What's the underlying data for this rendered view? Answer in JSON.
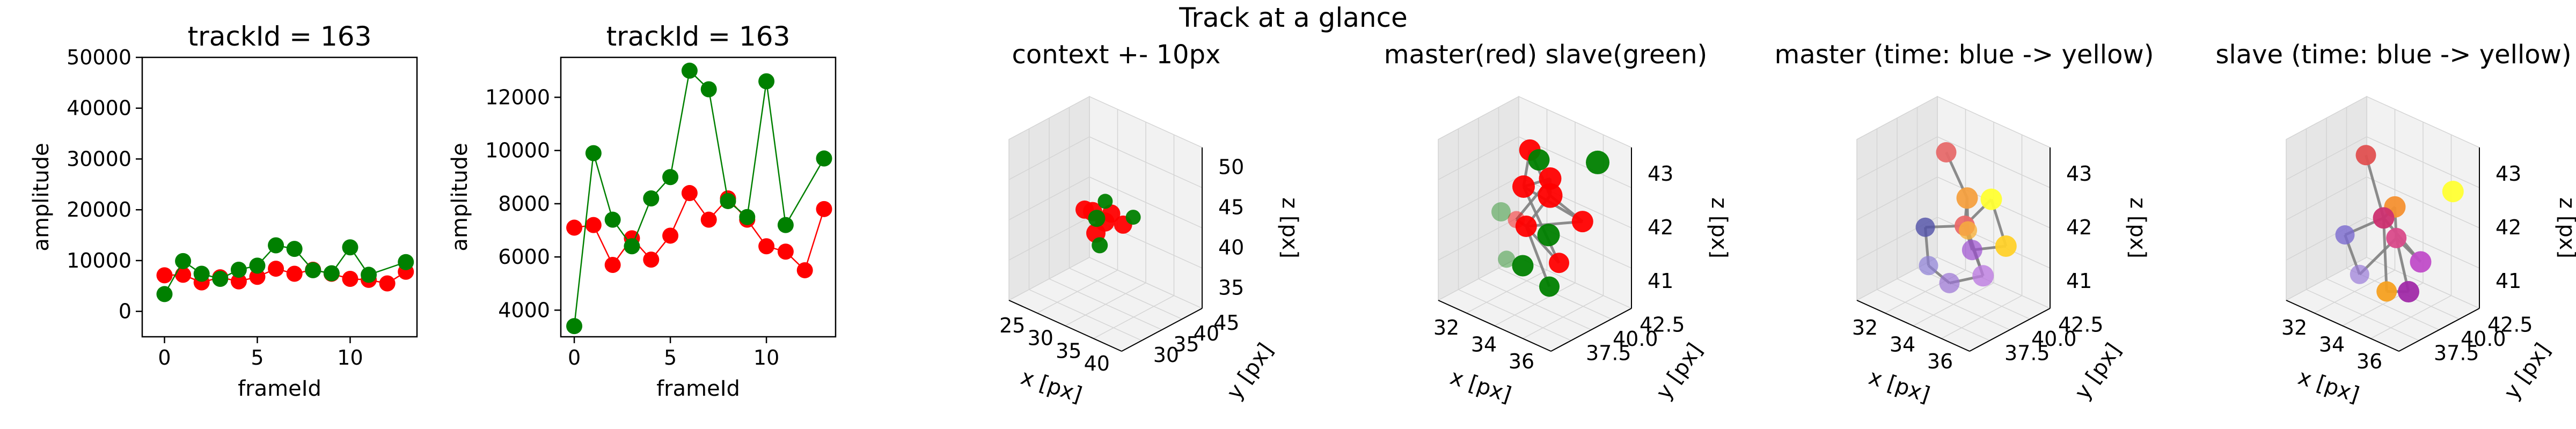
{
  "figure": {
    "suptitle": "Track at a glance"
  },
  "colors": {
    "red": "#ff0000",
    "green": "#008000",
    "gray": "#808080",
    "pane": "#f2f2f2",
    "pane_dark": "#e6e6e6",
    "grid": "#d4d4d4"
  },
  "chart_data": [
    {
      "type": "line",
      "title": "trackId = 163",
      "xlabel": "frameId",
      "ylabel": "amplitude",
      "xlim": [
        -1.2,
        13.6
      ],
      "ylim": [
        -5000,
        50000
      ],
      "xticks": [
        0,
        5,
        10
      ],
      "yticks": [
        0,
        10000,
        20000,
        30000,
        40000,
        50000
      ],
      "x": [
        0,
        1,
        2,
        3,
        4,
        5,
        6,
        7,
        8,
        9,
        10,
        11,
        12,
        13
      ],
      "series": [
        {
          "color": "red",
          "values": [
            7100,
            7200,
            5700,
            6700,
            5900,
            6800,
            8400,
            7400,
            8200,
            7400,
            6400,
            6200,
            5500,
            7800
          ]
        },
        {
          "color": "green",
          "values": [
            3400,
            9900,
            7400,
            6400,
            8200,
            9000,
            13000,
            12300,
            8100,
            7500,
            12600,
            7200,
            null,
            9700
          ]
        }
      ]
    },
    {
      "type": "line",
      "title": "trackId = 163",
      "xlabel": "frameId",
      "ylabel": "amplitude",
      "xlim": [
        -0.7,
        13.6
      ],
      "ylim": [
        3000,
        13500
      ],
      "xticks": [
        0,
        5,
        10
      ],
      "yticks": [
        4000,
        6000,
        8000,
        10000,
        12000
      ],
      "x": [
        0,
        1,
        2,
        3,
        4,
        5,
        6,
        7,
        8,
        9,
        10,
        11,
        12,
        13
      ],
      "series": [
        {
          "color": "red",
          "values": [
            7100,
            7200,
            5700,
            6700,
            5900,
            6800,
            8400,
            7400,
            8200,
            7400,
            6400,
            6200,
            5500,
            7800
          ]
        },
        {
          "color": "green",
          "values": [
            3400,
            9900,
            7400,
            6400,
            8200,
            9000,
            13000,
            12300,
            8100,
            7500,
            12600,
            7200,
            null,
            9700
          ]
        }
      ]
    },
    {
      "type": "scatter",
      "title": "context +- 10px",
      "xlabel": "x [px]",
      "ylabel": "y [px]",
      "zlabel": "z [px]",
      "xticks": [
        "25",
        "30",
        "35",
        "40"
      ],
      "yticks": [
        "30",
        "35",
        "40",
        "45"
      ],
      "zticks": [
        "35",
        "40",
        "45",
        "50"
      ],
      "points": [
        {
          "x": 0.3,
          "y": 0.52,
          "z": 0.52,
          "color": "red",
          "r": 17
        },
        {
          "x": 0.4,
          "y": 0.48,
          "z": 0.55,
          "color": "red",
          "r": 18
        },
        {
          "x": 0.48,
          "y": 0.52,
          "z": 0.5,
          "color": "red",
          "r": 18
        },
        {
          "x": 0.55,
          "y": 0.5,
          "z": 0.58,
          "color": "red",
          "r": 17
        },
        {
          "x": 0.62,
          "y": 0.55,
          "z": 0.52,
          "color": "red",
          "r": 17
        },
        {
          "x": 0.45,
          "y": 0.45,
          "z": 0.44,
          "color": "red",
          "r": 18
        },
        {
          "x": 0.35,
          "y": 0.6,
          "z": 0.46,
          "color": "green",
          "r": 16
        },
        {
          "x": 0.52,
          "y": 0.4,
          "z": 0.4,
          "color": "green",
          "r": 15
        },
        {
          "x": 0.66,
          "y": 0.62,
          "z": 0.56,
          "color": "green",
          "r": 14
        },
        {
          "x": 0.44,
          "y": 0.58,
          "z": 0.6,
          "color": "green",
          "r": 14
        }
      ]
    },
    {
      "type": "scatter",
      "title": "master(red) slave(green)",
      "xlabel": "x [px]",
      "ylabel": "y [px]",
      "zlabel": "z [px]",
      "xticks": [
        "32",
        "34",
        "36"
      ],
      "yticks": [
        "37.5",
        "40.0",
        "42.5"
      ],
      "zticks": [
        "41",
        "42",
        "43"
      ],
      "points": [
        {
          "x": 0.42,
          "y": 0.55,
          "z": 0.92,
          "color": "red",
          "r": 20
        },
        {
          "x": 0.4,
          "y": 0.5,
          "z": 0.7,
          "color": "red",
          "r": 21
        },
        {
          "x": 0.55,
          "y": 0.62,
          "z": 0.66,
          "color": "red",
          "r": 23
        },
        {
          "x": 0.6,
          "y": 0.55,
          "z": 0.8,
          "color": "red",
          "r": 21
        },
        {
          "x": 0.78,
          "y": 0.7,
          "z": 0.55,
          "color": "red",
          "r": 20
        },
        {
          "x": 0.48,
          "y": 0.42,
          "z": 0.5,
          "color": "red",
          "r": 20
        },
        {
          "x": 0.3,
          "y": 0.55,
          "z": 0.45,
          "color": "red",
          "r": 16,
          "alpha": 0.45
        },
        {
          "x": 0.75,
          "y": 0.45,
          "z": 0.35,
          "color": "red",
          "r": 19
        },
        {
          "x": 0.2,
          "y": 0.5,
          "z": 0.48,
          "color": "green",
          "r": 18,
          "alpha": 0.4
        },
        {
          "x": 0.45,
          "y": 0.62,
          "z": 0.85,
          "color": "green",
          "r": 20
        },
        {
          "x": 0.55,
          "y": 0.6,
          "z": 0.42,
          "color": "green",
          "r": 21
        },
        {
          "x": 0.9,
          "y": 0.72,
          "z": 0.95,
          "color": "green",
          "r": 22
        },
        {
          "x": 0.5,
          "y": 0.35,
          "z": 0.28,
          "color": "green",
          "r": 20
        },
        {
          "x": 0.7,
          "y": 0.4,
          "z": 0.2,
          "color": "green",
          "r": 19
        },
        {
          "x": 0.32,
          "y": 0.4,
          "z": 0.25,
          "color": "green",
          "r": 16,
          "alpha": 0.4
        }
      ],
      "path": [
        [
          0,
          1
        ],
        [
          1,
          3
        ],
        [
          3,
          2
        ],
        [
          2,
          5
        ],
        [
          5,
          4
        ],
        [
          4,
          1
        ],
        [
          1,
          7
        ],
        [
          7,
          5
        ],
        [
          2,
          0
        ],
        [
          3,
          6
        ],
        [
          6,
          5
        ],
        [
          5,
          13
        ],
        [
          2,
          4
        ]
      ]
    },
    {
      "type": "scatter",
      "title": "master (time: blue -> yellow)",
      "xlabel": "x [px]",
      "ylabel": "y [px]",
      "zlabel": "z [px]",
      "xticks": [
        "32",
        "34",
        "36"
      ],
      "yticks": [
        "37.5",
        "40.0",
        "42.5"
      ],
      "zticks": [
        "41",
        "42",
        "43"
      ],
      "points": [
        {
          "x": 0.4,
          "y": 0.55,
          "z": 0.9,
          "color": "#e66a6a",
          "r": 19
        },
        {
          "x": 0.55,
          "y": 0.6,
          "z": 0.65,
          "color": "#f4a040",
          "r": 20
        },
        {
          "x": 0.75,
          "y": 0.62,
          "z": 0.7,
          "color": "#ffff33",
          "r": 20
        },
        {
          "x": 0.88,
          "y": 0.62,
          "z": 0.45,
          "color": "#ffd12a",
          "r": 20
        },
        {
          "x": 0.6,
          "y": 0.5,
          "z": 0.52,
          "color": "#ea6a6a",
          "r": 19
        },
        {
          "x": 0.68,
          "y": 0.48,
          "z": 0.4,
          "color": "#9d4ed0",
          "r": 19,
          "alpha": 0.7
        },
        {
          "x": 0.82,
          "y": 0.42,
          "z": 0.3,
          "color": "#bc7be0",
          "r": 20,
          "alpha": 0.8
        },
        {
          "x": 0.25,
          "y": 0.5,
          "z": 0.4,
          "color": "#5050a8",
          "r": 18,
          "alpha": 0.8
        },
        {
          "x": 0.35,
          "y": 0.4,
          "z": 0.22,
          "color": "#8b7ed6",
          "r": 18,
          "alpha": 0.7
        },
        {
          "x": 0.55,
          "y": 0.38,
          "z": 0.18,
          "color": "#9a72d4",
          "r": 19,
          "alpha": 0.7
        },
        {
          "x": 0.7,
          "y": 0.4,
          "z": 0.55,
          "color": "#f7b23b",
          "r": 17,
          "alpha": 0.8
        }
      ],
      "path": [
        [
          0,
          1
        ],
        [
          1,
          4
        ],
        [
          4,
          2
        ],
        [
          2,
          3
        ],
        [
          3,
          5
        ],
        [
          5,
          4
        ],
        [
          4,
          6
        ],
        [
          6,
          9
        ],
        [
          9,
          8
        ],
        [
          8,
          7
        ],
        [
          7,
          4
        ],
        [
          1,
          10
        ],
        [
          10,
          6
        ]
      ]
    },
    {
      "type": "scatter",
      "title": "slave (time: blue -> yellow)",
      "xlabel": "x [px]",
      "ylabel": "y [px]",
      "zlabel": "z [px]",
      "xticks": [
        "32",
        "34",
        "36"
      ],
      "yticks": [
        "37.5",
        "40.0",
        "42.5"
      ],
      "zticks": [
        "41",
        "42",
        "43"
      ],
      "points": [
        {
          "x": 0.35,
          "y": 0.5,
          "z": 0.88,
          "color": "#e05050",
          "r": 19
        },
        {
          "x": 0.98,
          "y": 0.7,
          "z": 0.8,
          "color": "#ffff33",
          "r": 20
        },
        {
          "x": 0.55,
          "y": 0.58,
          "z": 0.6,
          "color": "#f49030",
          "r": 20
        },
        {
          "x": 0.45,
          "y": 0.58,
          "z": 0.5,
          "color": "#cc3070",
          "r": 20
        },
        {
          "x": 0.62,
          "y": 0.5,
          "z": 0.45,
          "color": "#d94a8a",
          "r": 19
        },
        {
          "x": 0.85,
          "y": 0.48,
          "z": 0.38,
          "color": "#c04cc8",
          "r": 20
        },
        {
          "x": 0.2,
          "y": 0.45,
          "z": 0.35,
          "color": "#7a6ad0",
          "r": 18,
          "alpha": 0.8
        },
        {
          "x": 0.38,
          "y": 0.38,
          "z": 0.18,
          "color": "#9a7ad8",
          "r": 18,
          "alpha": 0.7
        },
        {
          "x": 0.62,
          "y": 0.38,
          "z": 0.15,
          "color": "#f5a020",
          "r": 19
        },
        {
          "x": 0.8,
          "y": 0.4,
          "z": 0.2,
          "color": "#a02aa8",
          "r": 20
        }
      ],
      "path": [
        [
          0,
          3
        ],
        [
          3,
          2
        ],
        [
          2,
          4
        ],
        [
          4,
          5
        ],
        [
          5,
          3
        ],
        [
          3,
          8
        ],
        [
          8,
          9
        ],
        [
          9,
          4
        ],
        [
          4,
          7
        ],
        [
          7,
          6
        ],
        [
          6,
          3
        ]
      ]
    }
  ]
}
